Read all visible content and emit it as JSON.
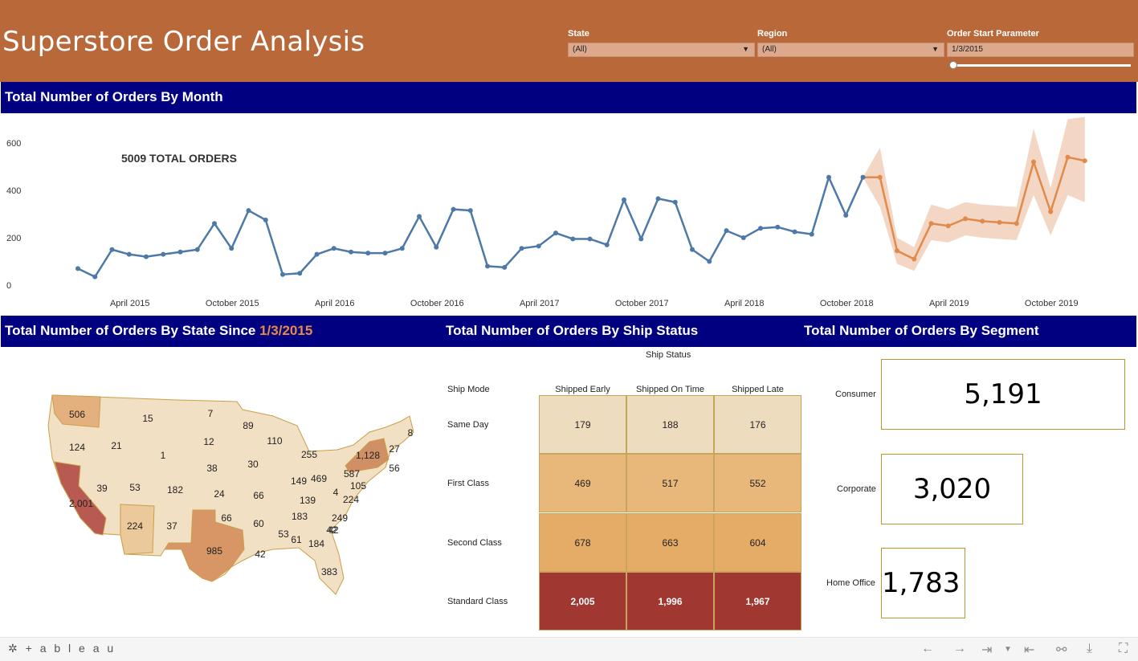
{
  "header": {
    "title": "Superstore Order Analysis",
    "filters": [
      {
        "label": "State",
        "value": "(All)"
      },
      {
        "label": "Region",
        "value": "(All)"
      },
      {
        "label": "Order Start Parameter",
        "value": "1/3/2015"
      }
    ]
  },
  "line_section": {
    "banner": "Total Number of Orders By Month",
    "total_label": "5009 TOTAL ORDERS"
  },
  "state_section": {
    "banner_prefix": "Total Number of Orders By State Since ",
    "banner_date": "1/3/2015",
    "states": [
      {
        "state": "WA",
        "value": "506"
      },
      {
        "state": "OR",
        "value": "124"
      },
      {
        "state": "CA",
        "value": "2,001"
      },
      {
        "state": "ID",
        "value": "21"
      },
      {
        "state": "NV",
        "value": "39"
      },
      {
        "state": "MT",
        "value": "15"
      },
      {
        "state": "WY",
        "value": "1"
      },
      {
        "state": "UT",
        "value": "53"
      },
      {
        "state": "AZ",
        "value": "224"
      },
      {
        "state": "CO",
        "value": "182"
      },
      {
        "state": "NM",
        "value": "37"
      },
      {
        "state": "ND",
        "value": "7"
      },
      {
        "state": "SD",
        "value": "12"
      },
      {
        "state": "NE",
        "value": "38"
      },
      {
        "state": "KS",
        "value": "24"
      },
      {
        "state": "OK",
        "value": "66"
      },
      {
        "state": "TX",
        "value": "985"
      },
      {
        "state": "MN",
        "value": "89"
      },
      {
        "state": "IA",
        "value": "30"
      },
      {
        "state": "MO",
        "value": "66"
      },
      {
        "state": "AR",
        "value": "60"
      },
      {
        "state": "LA",
        "value": "42"
      },
      {
        "state": "WI",
        "value": "110"
      },
      {
        "state": "IL",
        "value": "149"
      },
      {
        "state": "MI",
        "value": "255"
      },
      {
        "state": "IN",
        "value": "139"
      },
      {
        "state": "OH",
        "value": "469"
      },
      {
        "state": "KY",
        "value": "183"
      },
      {
        "state": "TN",
        "value": "53"
      },
      {
        "state": "MS",
        "value": "61"
      },
      {
        "state": "AL",
        "value": "184"
      },
      {
        "state": "GA",
        "value": "42"
      },
      {
        "state": "FL",
        "value": "383"
      },
      {
        "state": "SC",
        "value": "42"
      },
      {
        "state": "NC",
        "value": "249"
      },
      {
        "state": "VA",
        "value": "224"
      },
      {
        "state": "WV",
        "value": "4"
      },
      {
        "state": "PA",
        "value": "587"
      },
      {
        "state": "MD",
        "value": "105"
      },
      {
        "state": "NY",
        "value": "1,128"
      },
      {
        "state": "VT",
        "value": "27"
      },
      {
        "state": "MA",
        "value": "56"
      },
      {
        "state": "ME",
        "value": "8"
      }
    ]
  },
  "ship_section": {
    "banner": "Total Number of Orders By Ship Status",
    "ship_status_label": "Ship Status",
    "ship_mode_label": "Ship Mode",
    "columns": [
      "Shipped Early",
      "Shipped On Time",
      "Shipped Late"
    ],
    "rows": [
      {
        "label": "Same Day",
        "values": [
          "179",
          "188",
          "176"
        ]
      },
      {
        "label": "First Class",
        "values": [
          "469",
          "517",
          "552"
        ]
      },
      {
        "label": "Second Class",
        "values": [
          "678",
          "663",
          "604"
        ]
      },
      {
        "label": "Standard Class",
        "values": [
          "2,005",
          "1,996",
          "1,967"
        ]
      }
    ],
    "colors": [
      "#eedcbf",
      "#e8b87a",
      "#e5ac68",
      "#a13731"
    ]
  },
  "segment_section": {
    "banner": "Total Number of Orders By Segment",
    "segments": [
      {
        "label": "Consumer",
        "value": "5,191"
      },
      {
        "label": "Corporate",
        "value": "3,020"
      },
      {
        "label": "Home Office",
        "value": "1,783"
      }
    ]
  },
  "footer": {
    "brand": "+ a b l e a u",
    "icons": [
      "undo-icon",
      "redo-icon",
      "revert-icon",
      "first-page-icon",
      "share-icon",
      "download-icon",
      "fullscreen-icon"
    ]
  },
  "colors": {
    "header": "#b9683a",
    "banner": "#000080",
    "actual_line": "#4e79a7",
    "forecast_line": "#e08a4c",
    "forecast_band": "#f3d6c4"
  },
  "chart_data": {
    "type": "line",
    "title": "Total Number of Orders By Month",
    "annotation": "5009 TOTAL ORDERS",
    "x_ticks": [
      "April 2015",
      "October 2015",
      "April 2016",
      "October 2016",
      "April 2017",
      "October 2017",
      "April 2018",
      "October 2018",
      "April 2019",
      "October 2019"
    ],
    "y_ticks": [
      0,
      200,
      400,
      600
    ],
    "ylim": [
      0,
      700
    ],
    "x_start": "2015-01",
    "series": [
      {
        "name": "Actual",
        "values": [
          70,
          35,
          150,
          130,
          120,
          130,
          140,
          150,
          260,
          155,
          315,
          275,
          45,
          50,
          130,
          155,
          140,
          135,
          135,
          155,
          290,
          160,
          320,
          315,
          80,
          75,
          155,
          165,
          220,
          195,
          195,
          170,
          360,
          195,
          365,
          350,
          150,
          100,
          230,
          200,
          240,
          245,
          225,
          215,
          455,
          295,
          455
        ]
      },
      {
        "name": "Forecast",
        "start_index": 46,
        "values": [
          455,
          455,
          145,
          110,
          260,
          250,
          280,
          270,
          265,
          260,
          520,
          310,
          540,
          525
        ],
        "lower": [
          455,
          330,
          90,
          60,
          190,
          180,
          210,
          200,
          195,
          190,
          380,
          210,
          380,
          350
        ],
        "upper": [
          455,
          580,
          200,
          160,
          340,
          320,
          350,
          340,
          335,
          330,
          660,
          410,
          700,
          710
        ]
      }
    ]
  }
}
